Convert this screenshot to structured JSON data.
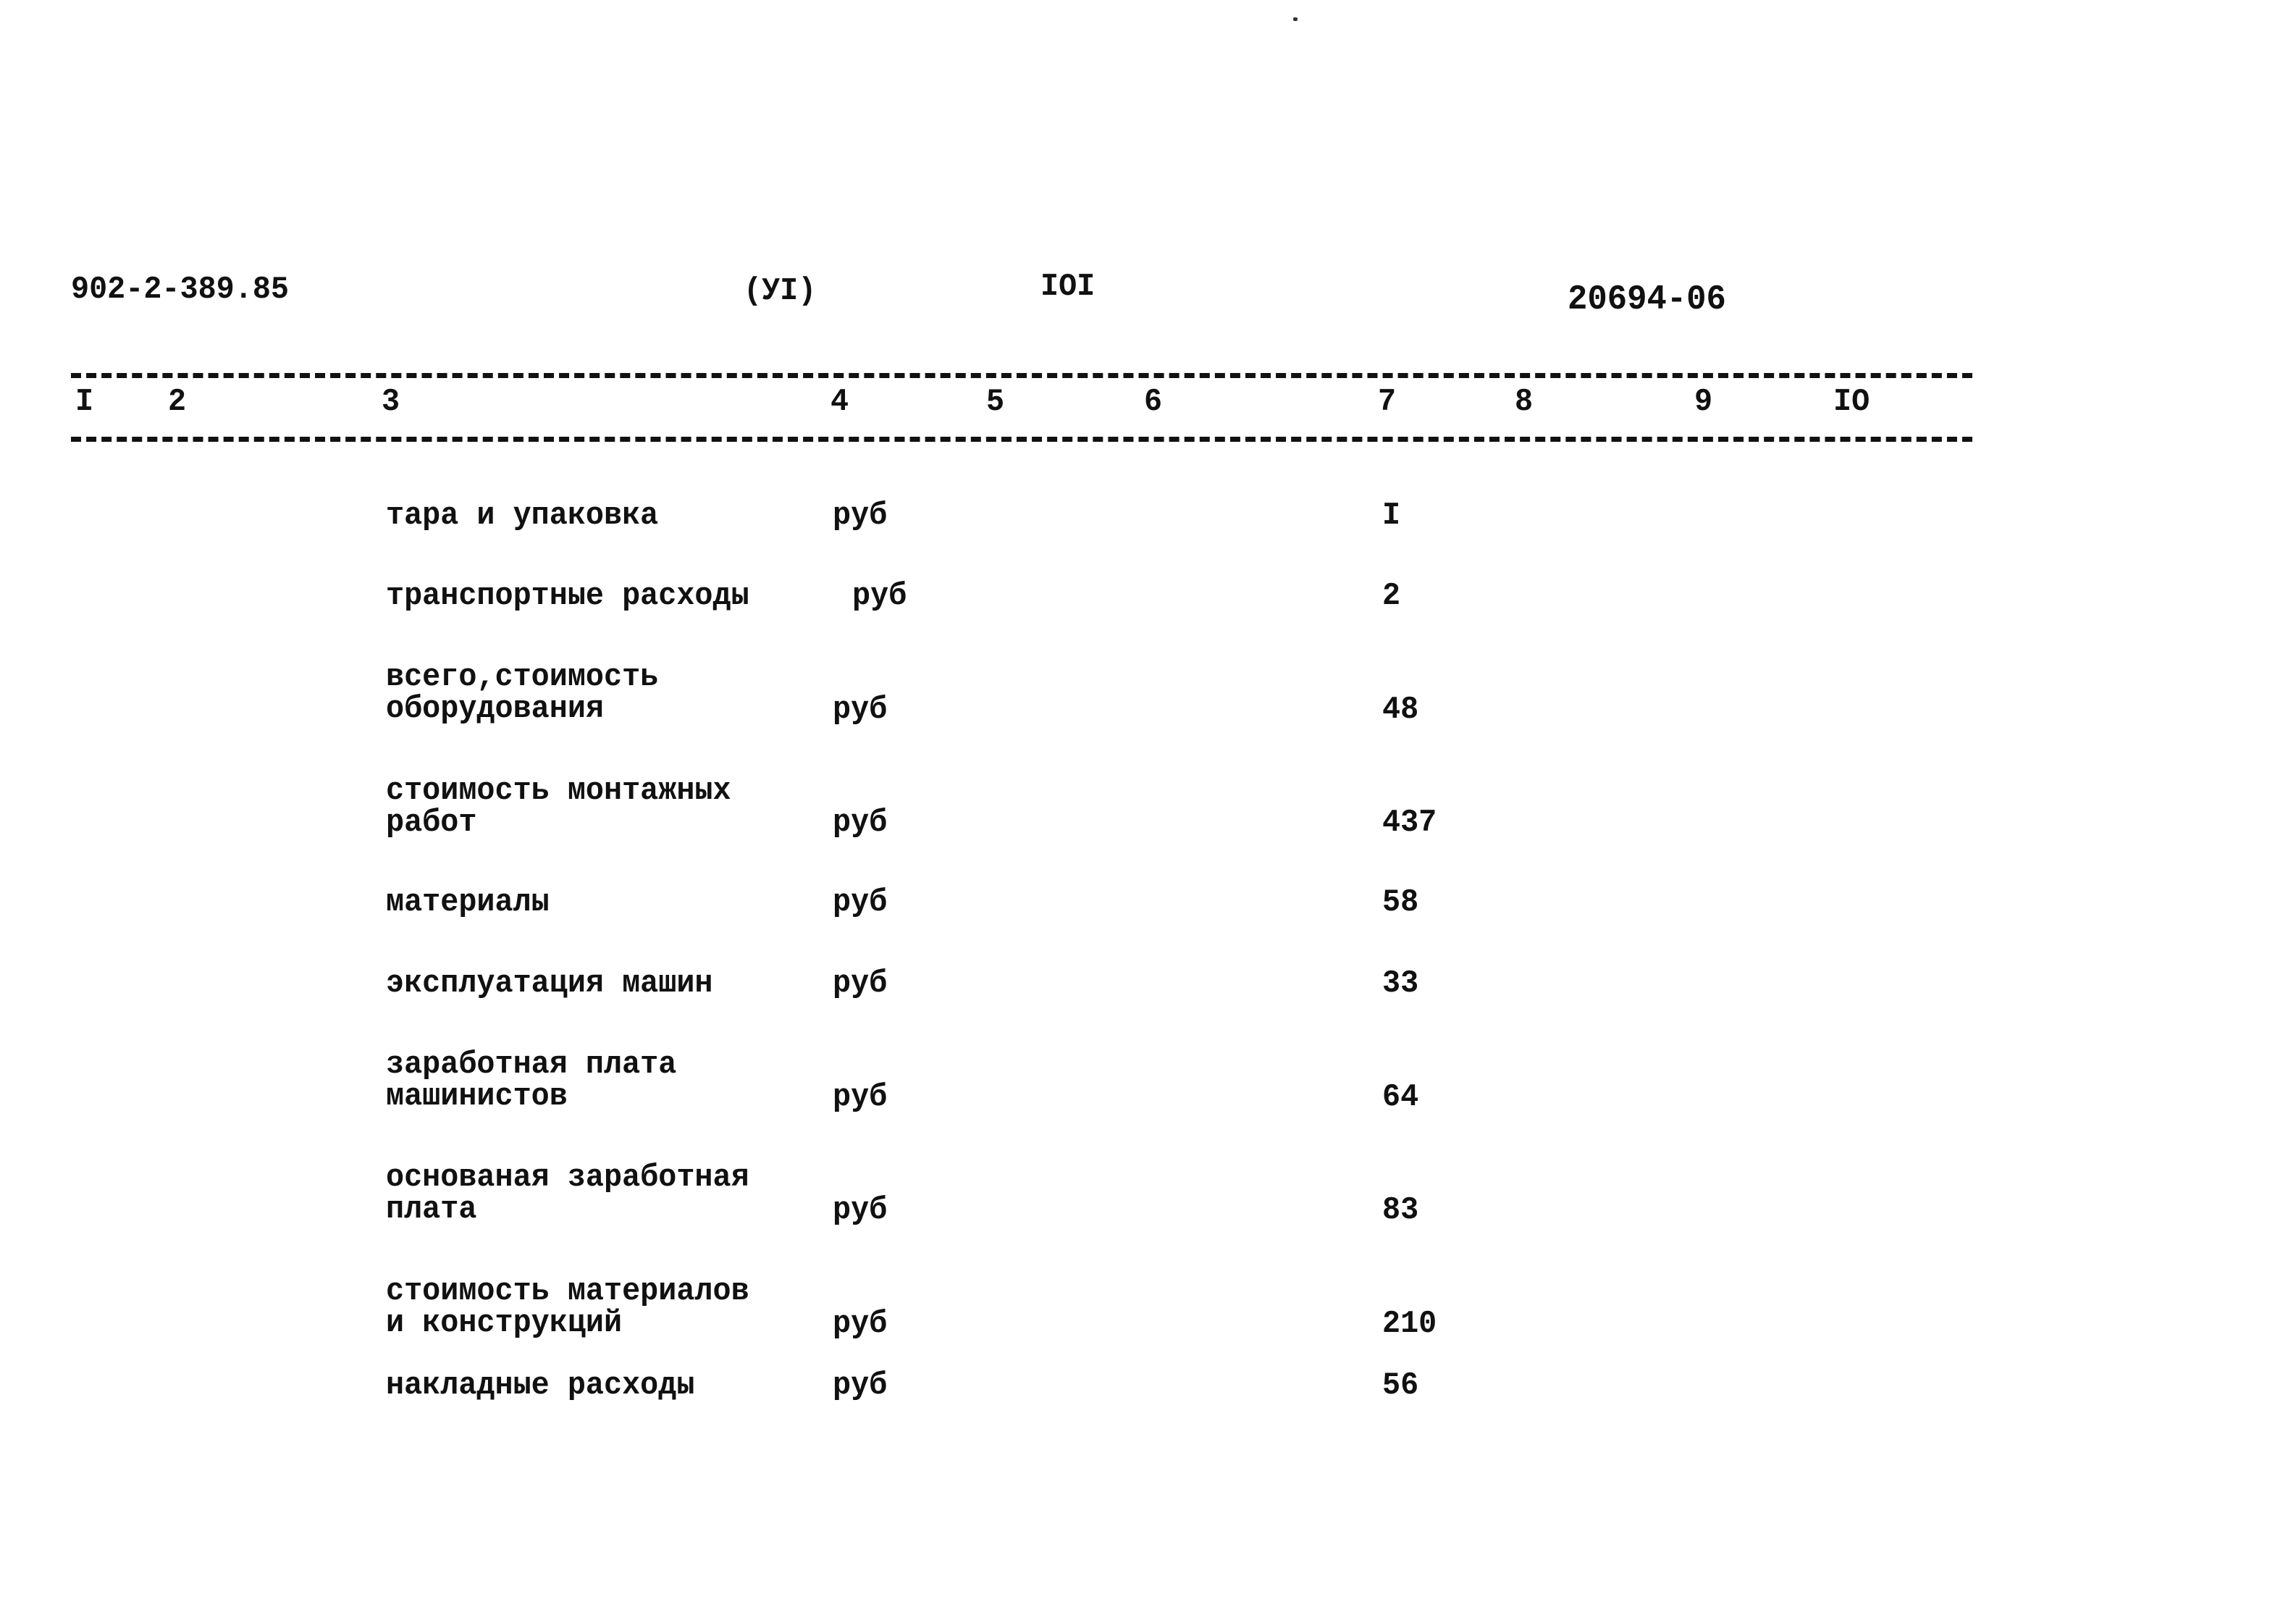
{
  "header": {
    "doc_code": "902-2-389.85",
    "section": "(УI)",
    "page": "IOI",
    "inventory_number": "20694-06"
  },
  "columns": [
    "I",
    "2",
    "3",
    "4",
    "5",
    "6",
    "7",
    "8",
    "9",
    "IO"
  ],
  "rows": [
    {
      "name": "тара и упаковка",
      "unit": "руб",
      "value": "I"
    },
    {
      "name": "транспортные расходы",
      "unit": "руб",
      "value": "2"
    },
    {
      "name": "всего,стоимость\nоборудования",
      "unit": "руб",
      "value": "48"
    },
    {
      "name": "стоимость монтажных\nработ",
      "unit": "руб",
      "value": "437"
    },
    {
      "name": "материалы",
      "unit": "руб",
      "value": "58"
    },
    {
      "name": "эксплуатация машин",
      "unit": "руб",
      "value": "33"
    },
    {
      "name": "заработная плата\nмашинистов",
      "unit": "руб",
      "value": "64"
    },
    {
      "name": "основаная заработная\nплата",
      "unit": "руб",
      "value": "83"
    },
    {
      "name": "стоимость материалов\nи конструкций",
      "unit": "руб",
      "value": "210"
    },
    {
      "name": "накладные расходы",
      "unit": "руб",
      "value": "56"
    }
  ]
}
